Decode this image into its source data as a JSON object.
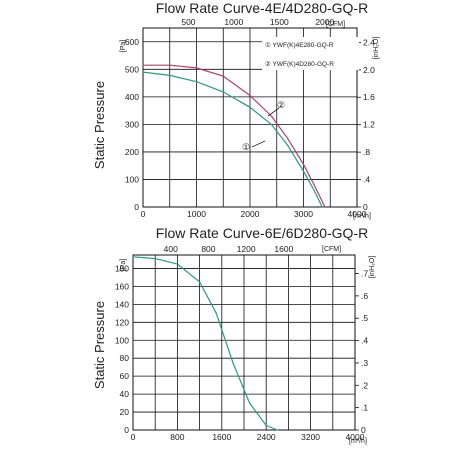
{
  "colors": {
    "curve_1": "#2e9a7c",
    "curve_2": "#b0406a",
    "grid": "#111111",
    "text": "#222222"
  },
  "chart_data": [
    {
      "type": "line",
      "title": "Flow Rate Curve-4E/4D280-GQ-R",
      "ylabel": "Static Pressure",
      "x_bottom_ticks": [
        "0",
        "1000",
        "2000",
        "3000",
        "4000"
      ],
      "x_bottom_unit": "[m³/h]",
      "x_top_ticks": [
        "500",
        "1000",
        "1500",
        "2000"
      ],
      "x_top_unit": "[CFM]",
      "y_left_ticks": [
        "0",
        "100",
        "200",
        "300",
        "400",
        "500",
        "600"
      ],
      "y_left_unit": "[Pa]",
      "y_right_ticks": [
        "0",
        ".4",
        ".8",
        "1.2",
        "1.6",
        "2.0",
        "2.4"
      ],
      "y_right_unit": "[inH₂O]",
      "xlim": [
        0,
        4000
      ],
      "ylim": [
        0,
        650
      ],
      "legend": [
        "① YWF(K)4E280-GQ-R",
        "② YWF(K)4D280-GQ-R"
      ],
      "annotations": [
        "①",
        "②"
      ],
      "series": [
        {
          "name": "① YWF(K)4E280-GQ-R",
          "x": [
            0,
            500,
            1000,
            1500,
            2000,
            2400,
            2700,
            3000,
            3200,
            3350
          ],
          "y": [
            490,
            478,
            455,
            418,
            362,
            300,
            225,
            130,
            60,
            0
          ]
        },
        {
          "name": "② YWF(K)4D280-GQ-R",
          "x": [
            0,
            500,
            1000,
            1500,
            2000,
            2400,
            2700,
            3000,
            3200,
            3400
          ],
          "y": [
            515,
            515,
            505,
            475,
            405,
            330,
            250,
            155,
            80,
            0
          ]
        }
      ]
    },
    {
      "type": "line",
      "title": "Flow Rate Curve-6E/6D280-GQ-R",
      "ylabel": "Static Pressure",
      "x_bottom_ticks": [
        "0",
        "800",
        "1600",
        "2400",
        "3200",
        "4000"
      ],
      "x_bottom_unit": "[m³/h]",
      "x_top_ticks": [
        "400",
        "800",
        "1200",
        "1600"
      ],
      "x_top_unit": "[CFM]",
      "y_left_ticks": [
        "0",
        "20",
        "40",
        "60",
        "80",
        "100",
        "120",
        "140",
        "160",
        "180"
      ],
      "y_left_unit": "[Pa]",
      "y_right_ticks": [
        "0",
        ".1",
        ".2",
        ".3",
        ".4",
        ".5",
        ".6",
        ".7"
      ],
      "y_right_unit": "[inH₂O]",
      "xlim": [
        0,
        4000
      ],
      "ylim": [
        0,
        195
      ],
      "series": [
        {
          "name": "",
          "x": [
            0,
            400,
            800,
            1200,
            1500,
            1800,
            2100,
            2400,
            2600
          ],
          "y": [
            193,
            191,
            185,
            165,
            130,
            75,
            30,
            5,
            0
          ]
        }
      ]
    }
  ]
}
